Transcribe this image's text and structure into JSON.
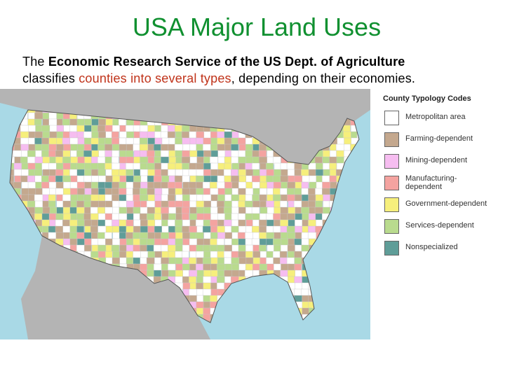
{
  "title": "USA Major Land Uses",
  "intro": {
    "line1": {
      "plain": "The ",
      "bold": "Economic Research Service of the US Dept. of Agriculture"
    },
    "line2": {
      "plain": "classifies ",
      "highlight": "counties into several types",
      "end": ", depending on their economies."
    }
  },
  "legend": {
    "title": "County Typology Codes",
    "items": [
      {
        "label": [
          "Metropolitan area"
        ],
        "color": "#ffffff"
      },
      {
        "label": [
          "Farming-dependent"
        ],
        "color": "#c4a88e"
      },
      {
        "label": [
          "Mining-dependent"
        ],
        "color": "#f6bdf0"
      },
      {
        "label": [
          "Manufacturing-",
          "dependent"
        ],
        "color": "#f4a3a0"
      },
      {
        "label": [
          "Government-dependent"
        ],
        "color": "#f6ef7c"
      },
      {
        "label": [
          "Services-dependent"
        ],
        "color": "#b9db8e"
      },
      {
        "label": [
          "Nonspecialized"
        ],
        "color": "#5f9d98"
      }
    ]
  }
}
